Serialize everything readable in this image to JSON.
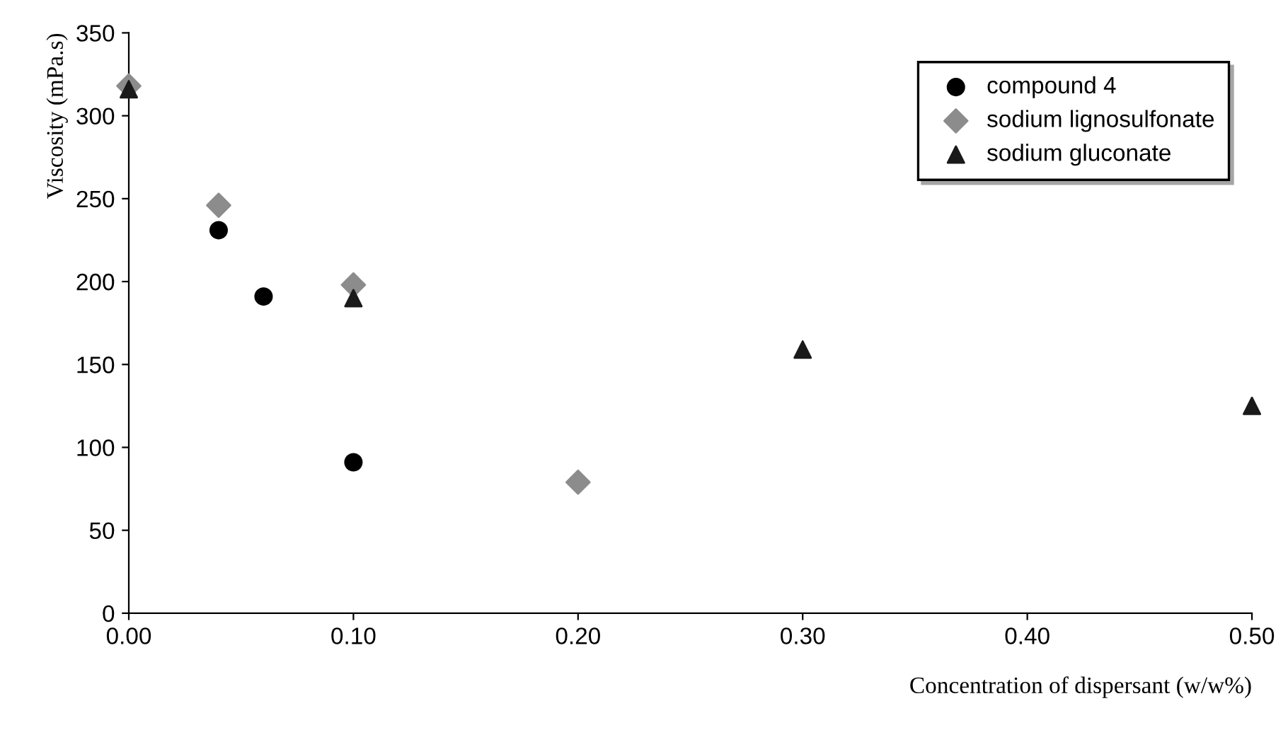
{
  "chart_data": {
    "type": "scatter",
    "xlabel": "Concentration of dispersant (w/w%)",
    "ylabel": "Viscosity (mPa.s)",
    "xlim": [
      0,
      0.5
    ],
    "xticks": [
      {
        "value": 0,
        "label": "0.00"
      },
      {
        "value": 0.1,
        "label": "0.10"
      },
      {
        "value": 0.2,
        "label": "0.20"
      },
      {
        "value": 0.3,
        "label": "0.30"
      },
      {
        "value": 0.4,
        "label": "0.40"
      },
      {
        "value": 0.5,
        "label": "0.50"
      }
    ],
    "ylim": [
      0,
      350
    ],
    "yticks": [
      0,
      50,
      100,
      150,
      200,
      250,
      300,
      350
    ],
    "grid": false,
    "legend": "top right",
    "series": [
      {
        "name": "compound 4",
        "color": "#000000",
        "marker": "circle",
        "x": [
          0.04,
          0.06,
          0.1
        ],
        "values": [
          231,
          191,
          91
        ]
      },
      {
        "name": "sodium lignosulfonate",
        "color": "#8c8c8c",
        "marker": "diamond",
        "x": [
          0,
          0.04,
          0.1,
          0.2
        ],
        "values": [
          318,
          246,
          198,
          79
        ]
      },
      {
        "name": "sodium gluconate",
        "color": "#1a1a1a",
        "marker": "triangle",
        "x": [
          0,
          0.1,
          0.3,
          0.5
        ],
        "values": [
          316,
          190,
          159,
          125
        ]
      }
    ]
  }
}
